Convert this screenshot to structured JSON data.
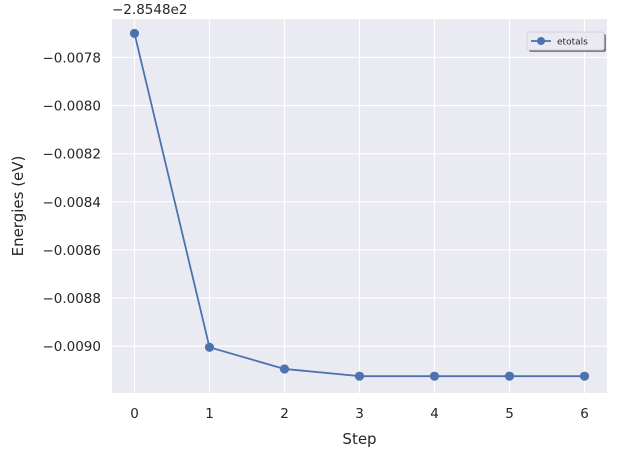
{
  "chart_data": {
    "type": "line",
    "x": [
      0,
      1,
      2,
      3,
      4,
      5,
      6
    ],
    "series": [
      {
        "name": "etotals",
        "values": [
          -0.0077,
          -0.009005,
          -0.009095,
          -0.009125,
          -0.009125,
          -0.009125,
          -0.009125
        ],
        "color": "#4c72b0",
        "marker": "circle"
      }
    ],
    "xlabel": "Step",
    "ylabel": "Energies (eV)",
    "offset_label": "−2.8548e2",
    "xlim": [
      -0.3,
      6.3
    ],
    "ylim": [
      -0.009195,
      -0.00764
    ],
    "x_ticks": [
      0,
      1,
      2,
      3,
      4,
      5,
      6
    ],
    "x_tick_labels": [
      "0",
      "1",
      "2",
      "3",
      "4",
      "5",
      "6"
    ],
    "y_ticks": [
      -0.0078,
      -0.008,
      -0.0082,
      -0.0084,
      -0.0086,
      -0.0088,
      -0.009
    ],
    "y_tick_labels": [
      "−0.0078",
      "−0.0080",
      "−0.0082",
      "−0.0084",
      "−0.0086",
      "−0.0088",
      "−0.0090"
    ],
    "grid": true,
    "background": "#eaeaf2",
    "legend_position": "top-right"
  }
}
